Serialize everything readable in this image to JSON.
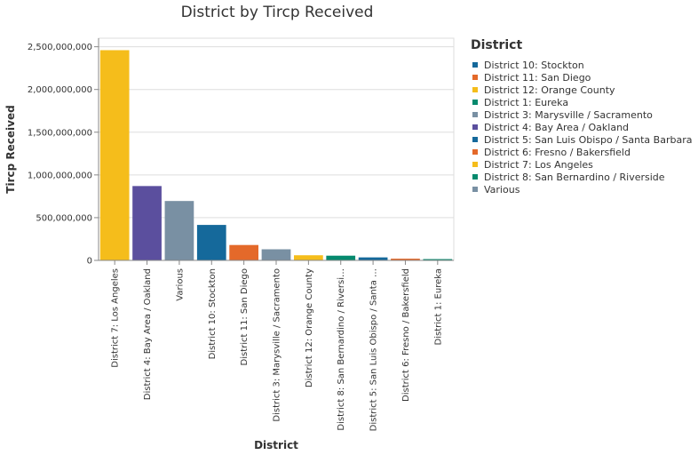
{
  "chart_data": {
    "type": "bar",
    "title": "District by Tircp Received",
    "xlabel": "District",
    "ylabel": "Tircp Received",
    "ylim": [
      0,
      2600000000
    ],
    "yticks": [
      0,
      500000000,
      1000000000,
      1500000000,
      2000000000,
      2500000000
    ],
    "ytick_labels": [
      "0",
      "500,000,000",
      "1,000,000,000",
      "1,500,000,000",
      "2,000,000,000",
      "2,500,000,000"
    ],
    "grid": true,
    "legend_title": "District",
    "legend_position": "right",
    "categories": [
      "District 7: Los Angeles",
      "District 4: Bay Area / Oakland",
      "Various",
      "District 10: Stockton",
      "District 11: San Diego",
      "District 3: Marysville / Sacramento",
      "District 12: Orange County",
      "District 8: San Bernardino / Riverside",
      "District 5: San Luis Obispo / Santa Barbara",
      "District 6: Fresno / Bakersfield",
      "District 1: Eureka"
    ],
    "category_labels": [
      "District 7: Los Angeles",
      "District 4: Bay Area / Oakland",
      "Various",
      "District 10: Stockton",
      "District 11: San Diego",
      "District 3: Marysville / Sacramento",
      "District 12: Orange County",
      "District 8: San Bernardino / Riversi…",
      "District 5: San Luis Obispo / Santa …",
      "District 6: Fresno / Bakersfield",
      "District 1: Eureka"
    ],
    "values": [
      2460000000,
      870000000,
      695000000,
      415000000,
      180000000,
      130000000,
      60000000,
      55000000,
      35000000,
      20000000,
      15000000
    ],
    "colors": [
      "#f5bd1b",
      "#5b4f9e",
      "#7990a3",
      "#15699b",
      "#e4692a",
      "#7990a3",
      "#f5bd1b",
      "#058a6e",
      "#15699b",
      "#e4692a",
      "#058a6e"
    ],
    "legend": [
      {
        "label": "District 10: Stockton",
        "color": "#15699b"
      },
      {
        "label": "District 11: San Diego",
        "color": "#e4692a"
      },
      {
        "label": "District 12: Orange County",
        "color": "#f5bd1b"
      },
      {
        "label": "District 1: Eureka",
        "color": "#058a6e"
      },
      {
        "label": "District 3: Marysville / Sacramento",
        "color": "#7990a3"
      },
      {
        "label": "District 4: Bay Area / Oakland",
        "color": "#5b4f9e"
      },
      {
        "label": "District 5: San Luis Obispo / Santa Barbara",
        "color": "#15699b"
      },
      {
        "label": "District 6: Fresno / Bakersfield",
        "color": "#e4692a"
      },
      {
        "label": "District 7: Los Angeles",
        "color": "#f5bd1b"
      },
      {
        "label": "District 8: San Bernardino / Riverside",
        "color": "#058a6e"
      },
      {
        "label": "Various",
        "color": "#7990a3"
      }
    ]
  }
}
